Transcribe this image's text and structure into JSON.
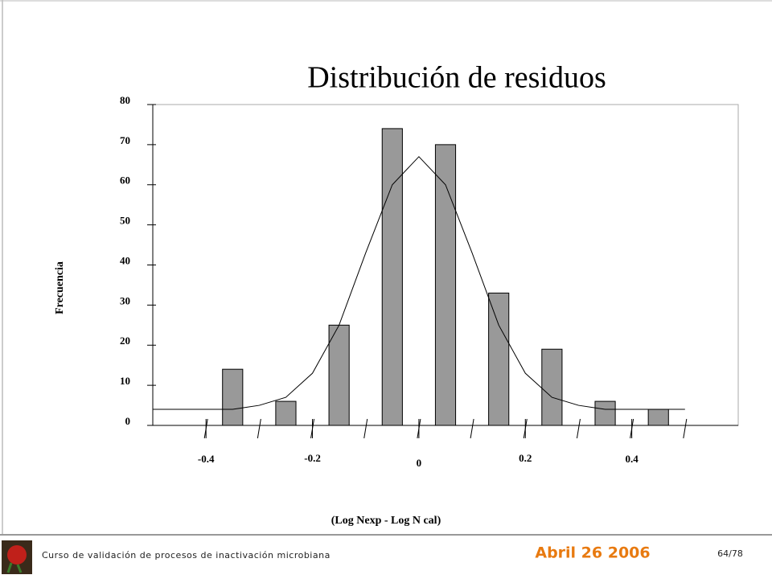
{
  "chart_data": {
    "type": "histogram",
    "title": "Distribución de residuos",
    "xlabel": "(Log Nexp - Log N cal)",
    "ylabel": "Frecuencia",
    "bins": [
      -0.4,
      -0.3,
      -0.2,
      -0.1,
      0,
      0.1,
      0.2,
      0.3,
      0.4,
      0.5
    ],
    "values": [
      14,
      6,
      25,
      74,
      70,
      33,
      19,
      6,
      4
    ],
    "color": "#999999",
    "curve": {
      "x": [
        -0.5,
        -0.45,
        -0.4,
        -0.35,
        -0.3,
        -0.25,
        -0.2,
        -0.15,
        -0.1,
        -0.05,
        0,
        0.05,
        0.1,
        0.15,
        0.2,
        0.25,
        0.3,
        0.35,
        0.4,
        0.45,
        0.5
      ],
      "values": [
        4,
        4,
        4,
        4,
        5,
        7,
        13,
        25,
        43,
        60,
        67,
        60,
        43,
        25,
        13,
        7,
        5,
        4,
        4,
        4,
        4
      ],
      "color": "#000000"
    },
    "xlim": [
      -0.5,
      0.6
    ],
    "xticks": [
      -0.4,
      -0.2,
      0,
      0.2,
      0.4
    ],
    "ylim": [
      0,
      80
    ],
    "yticks": [
      0,
      10,
      20,
      30,
      40,
      50,
      60,
      70,
      80
    ]
  },
  "footer": {
    "course": "Curso de validación de procesos de inactivación microbiana",
    "date": "Abril 26 2006",
    "page": "64/78"
  }
}
